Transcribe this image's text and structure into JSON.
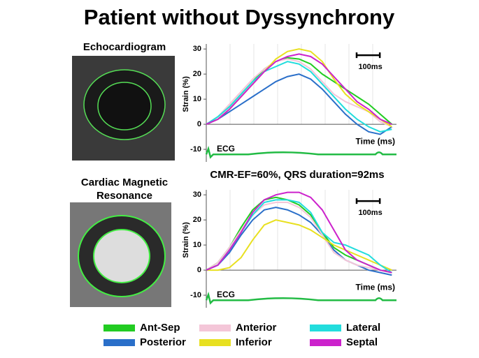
{
  "title": "Patient without Dyssynchrony",
  "echo_label": "Echocardiogram",
  "cmr_label": [
    "Cardiac Magnetic",
    "Resonance"
  ],
  "cmr_note": "CMR-EF=60%, QRS duration=92ms",
  "chart_data": [
    {
      "type": "line",
      "y_label": "Strain (%)",
      "x_label": "Time (ms)",
      "ecg_label": "ECG",
      "scale_bar": {
        "value": 100,
        "label": "100ms"
      },
      "xlim": [
        0,
        820
      ],
      "ylim": [
        -15,
        32
      ],
      "yticks": [
        -10,
        0,
        10,
        20,
        30
      ],
      "x": [
        0,
        50,
        100,
        150,
        200,
        250,
        300,
        350,
        400,
        450,
        500,
        550,
        600,
        650,
        700,
        750,
        800
      ],
      "series": [
        {
          "name": "Ant-Sep",
          "color": "#22cc22",
          "values": [
            0,
            3,
            7,
            12,
            17,
            22,
            25,
            26.5,
            26,
            24,
            20,
            17,
            14,
            11,
            8,
            4,
            0
          ]
        },
        {
          "name": "Posterior",
          "color": "#2a6fc9",
          "values": [
            0,
            2,
            5,
            8,
            11,
            14,
            17,
            19,
            20,
            18,
            14,
            9,
            4,
            0,
            -3,
            -4,
            -1
          ]
        },
        {
          "name": "Anterior",
          "color": "#f4c6d8",
          "values": [
            0,
            3,
            8,
            13,
            18,
            22,
            25,
            26,
            25,
            22,
            17,
            12,
            9,
            7,
            5,
            1,
            -1
          ]
        },
        {
          "name": "Inferior",
          "color": "#e8e020",
          "values": [
            0,
            2,
            6,
            11,
            16,
            21,
            26,
            29,
            30,
            29,
            25,
            18,
            12,
            8,
            5,
            2,
            -1
          ]
        },
        {
          "name": "Lateral",
          "color": "#22dddd",
          "values": [
            0,
            3,
            7,
            12,
            17,
            21,
            23,
            25,
            24,
            21,
            16,
            11,
            6,
            2,
            -1,
            -3,
            -2
          ]
        },
        {
          "name": "Septal",
          "color": "#cc22cc",
          "values": [
            0,
            2,
            6,
            11,
            16,
            21,
            25,
            27,
            28,
            27,
            24,
            19,
            14,
            9,
            6,
            2,
            0
          ]
        }
      ]
    },
    {
      "type": "line",
      "y_label": "Strain (%)",
      "x_label": "Time (ms)",
      "ecg_label": "ECG",
      "scale_bar": {
        "value": 100,
        "label": "100ms"
      },
      "xlim": [
        0,
        820
      ],
      "ylim": [
        -15,
        32
      ],
      "yticks": [
        -10,
        0,
        10,
        20,
        30
      ],
      "x": [
        0,
        50,
        100,
        150,
        200,
        250,
        300,
        350,
        400,
        450,
        500,
        550,
        600,
        650,
        700,
        750,
        800
      ],
      "series": [
        {
          "color": "#22cc22",
          "values": [
            0,
            3,
            9,
            17,
            24,
            28,
            29,
            28,
            26,
            22,
            15,
            9,
            6,
            4,
            2,
            0,
            -1
          ]
        },
        {
          "color": "#2a6fc9",
          "values": [
            0,
            2,
            7,
            14,
            20,
            24,
            25,
            24,
            22,
            19,
            14,
            8,
            4,
            2,
            0,
            -1,
            -2
          ]
        },
        {
          "color": "#f4c6d8",
          "values": [
            0,
            3,
            9,
            16,
            22,
            26,
            27,
            27,
            25,
            21,
            14,
            7,
            4,
            2,
            1,
            0,
            -1
          ]
        },
        {
          "color": "#e8e020",
          "values": [
            0,
            0,
            1,
            5,
            12,
            18,
            20,
            19,
            18,
            16,
            13,
            10,
            8,
            6,
            4,
            2,
            0
          ]
        },
        {
          "color": "#22dddd",
          "values": [
            0,
            2,
            8,
            15,
            22,
            27,
            28,
            28,
            27,
            23,
            15,
            11,
            10,
            8,
            6,
            2,
            -1
          ]
        },
        {
          "color": "#cc22cc",
          "values": [
            0,
            2,
            8,
            15,
            23,
            28,
            30,
            31,
            31,
            29,
            24,
            16,
            8,
            4,
            2,
            0,
            -1
          ]
        }
      ]
    }
  ]
}
